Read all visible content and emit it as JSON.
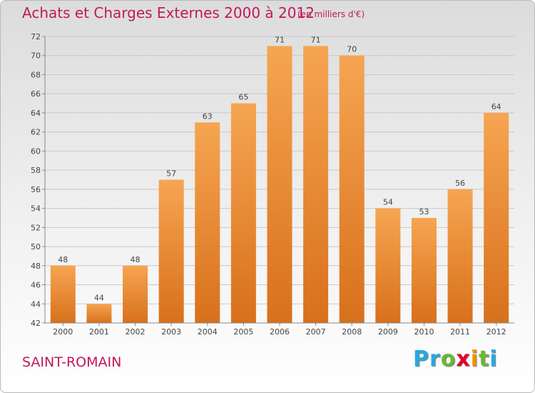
{
  "title": "Achats et Charges Externes 2000 à 2012",
  "subtitle": "(en milliers d'€)",
  "place": "SAINT-ROMAIN",
  "brand": {
    "letters": [
      "P",
      "r",
      "o",
      "x",
      "i",
      "t",
      "i"
    ],
    "colors": [
      "#27a9e1",
      "#27a9e1",
      "#6ab833",
      "#e4032e",
      "#f39200",
      "#6ab833",
      "#27a9e1"
    ]
  },
  "colors": {
    "bar_top": "#f6a552",
    "bar_bottom": "#d8701b",
    "text": "#c2185b"
  },
  "chart_data": {
    "type": "bar",
    "categories": [
      "2000",
      "2001",
      "2002",
      "2003",
      "2004",
      "2005",
      "2006",
      "2007",
      "2008",
      "2009",
      "2010",
      "2011",
      "2012"
    ],
    "values": [
      48,
      44,
      48,
      57,
      63,
      65,
      71,
      71,
      70,
      54,
      53,
      56,
      64
    ],
    "data_labels": [
      "48",
      "44",
      "48",
      "57",
      "63",
      "65",
      "71",
      "71",
      "70",
      "54",
      "53",
      "56",
      "64"
    ],
    "yticks": [
      "42",
      "44",
      "46",
      "48",
      "50",
      "52",
      "54",
      "56",
      "58",
      "60",
      "62",
      "64",
      "66",
      "68",
      "70",
      "72"
    ],
    "ylim": [
      42,
      72
    ],
    "grid": true,
    "legend": "none"
  }
}
